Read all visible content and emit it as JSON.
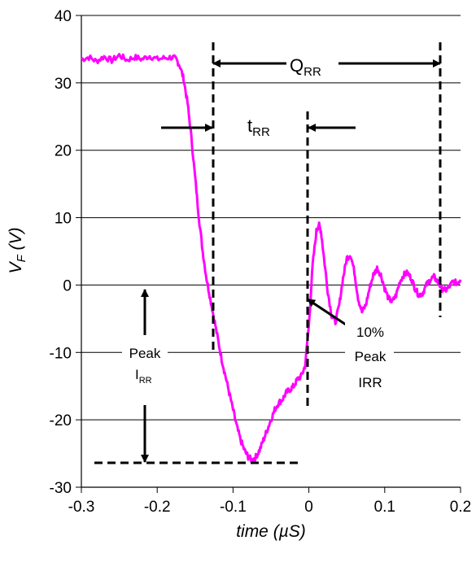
{
  "chart_data": {
    "type": "line",
    "xlabel": "time (µS)",
    "ylabel_main": "V",
    "ylabel_sub": "F",
    "ylabel_unit": " (V)",
    "xlim": [
      -0.3,
      0.2
    ],
    "ylim": [
      -30,
      40
    ],
    "x_ticks": [
      "-0.3",
      "-0.2",
      "-0.1",
      "0",
      "0.1",
      "0.2"
    ],
    "y_ticks": [
      "40",
      "30",
      "20",
      "10",
      "0",
      "-10",
      "-20",
      "-30"
    ],
    "grid": "horizontal",
    "line_color": "#ff00ff",
    "series": [
      {
        "x": [
          -0.3,
          -0.29,
          -0.28,
          -0.27,
          -0.26,
          -0.25,
          -0.24,
          -0.23,
          -0.22,
          -0.21,
          -0.2,
          -0.19,
          -0.18,
          -0.175,
          -0.17,
          -0.165,
          -0.16,
          -0.155,
          -0.15,
          -0.145,
          -0.14,
          -0.135,
          -0.13,
          -0.125,
          -0.12,
          -0.115,
          -0.11,
          -0.105,
          -0.1,
          -0.095,
          -0.09,
          -0.085,
          -0.08,
          -0.075,
          -0.07,
          -0.065,
          -0.06,
          -0.055,
          -0.05,
          -0.045,
          -0.04,
          -0.035,
          -0.03,
          -0.025,
          -0.02,
          -0.015,
          -0.01,
          -0.005,
          0,
          0.005,
          0.01,
          0.013,
          0.016,
          0.02,
          0.025,
          0.03,
          0.035,
          0.04,
          0.045,
          0.05,
          0.055,
          0.06,
          0.065,
          0.07,
          0.075,
          0.08,
          0.085,
          0.09,
          0.095,
          0.1,
          0.105,
          0.11,
          0.115,
          0.12,
          0.125,
          0.13,
          0.135,
          0.14,
          0.145,
          0.15,
          0.155,
          0.16,
          0.165,
          0.17,
          0.175,
          0.18,
          0.185,
          0.19,
          0.195,
          0.2
        ],
        "values": [
          33.5,
          33.8,
          33.2,
          33.9,
          33.3,
          34.1,
          33.4,
          33.8,
          33.5,
          34.0,
          33.5,
          33.7,
          33.8,
          33.5,
          32.5,
          30.5,
          27,
          22,
          16,
          10,
          5,
          1,
          -2,
          -5,
          -8,
          -11,
          -13.5,
          -16,
          -18.5,
          -21,
          -23,
          -24.5,
          -25.5,
          -26,
          -25.5,
          -24.5,
          -23,
          -21.5,
          -20,
          -18.5,
          -17.5,
          -17,
          -16,
          -15.5,
          -15,
          -14,
          -13.5,
          -12,
          -6,
          3,
          8,
          9,
          8,
          4,
          -1,
          -4.5,
          -5.5,
          -3,
          1,
          4,
          4.5,
          2,
          -2,
          -4,
          -3,
          -0.5,
          1.5,
          2.5,
          1.5,
          -0.5,
          -2,
          -2.5,
          -1.5,
          0.5,
          1.5,
          1.8,
          1,
          -0.5,
          -1.5,
          -1.2,
          0,
          0.8,
          1.2,
          0.5,
          -0.5,
          -0.8,
          -0.3,
          0.5,
          0.3,
          0.8
        ]
      }
    ],
    "annotations": {
      "qrr_main": "Q",
      "qrr_sub": "RR",
      "trr_main": "t",
      "trr_sub": "RR",
      "peak_label": "Peak",
      "irr_main": "I",
      "irr_sub": "RR",
      "ten_pct_line1": "10%",
      "ten_pct_line2": "Peak",
      "ten_pct_line3": "IRR"
    }
  }
}
